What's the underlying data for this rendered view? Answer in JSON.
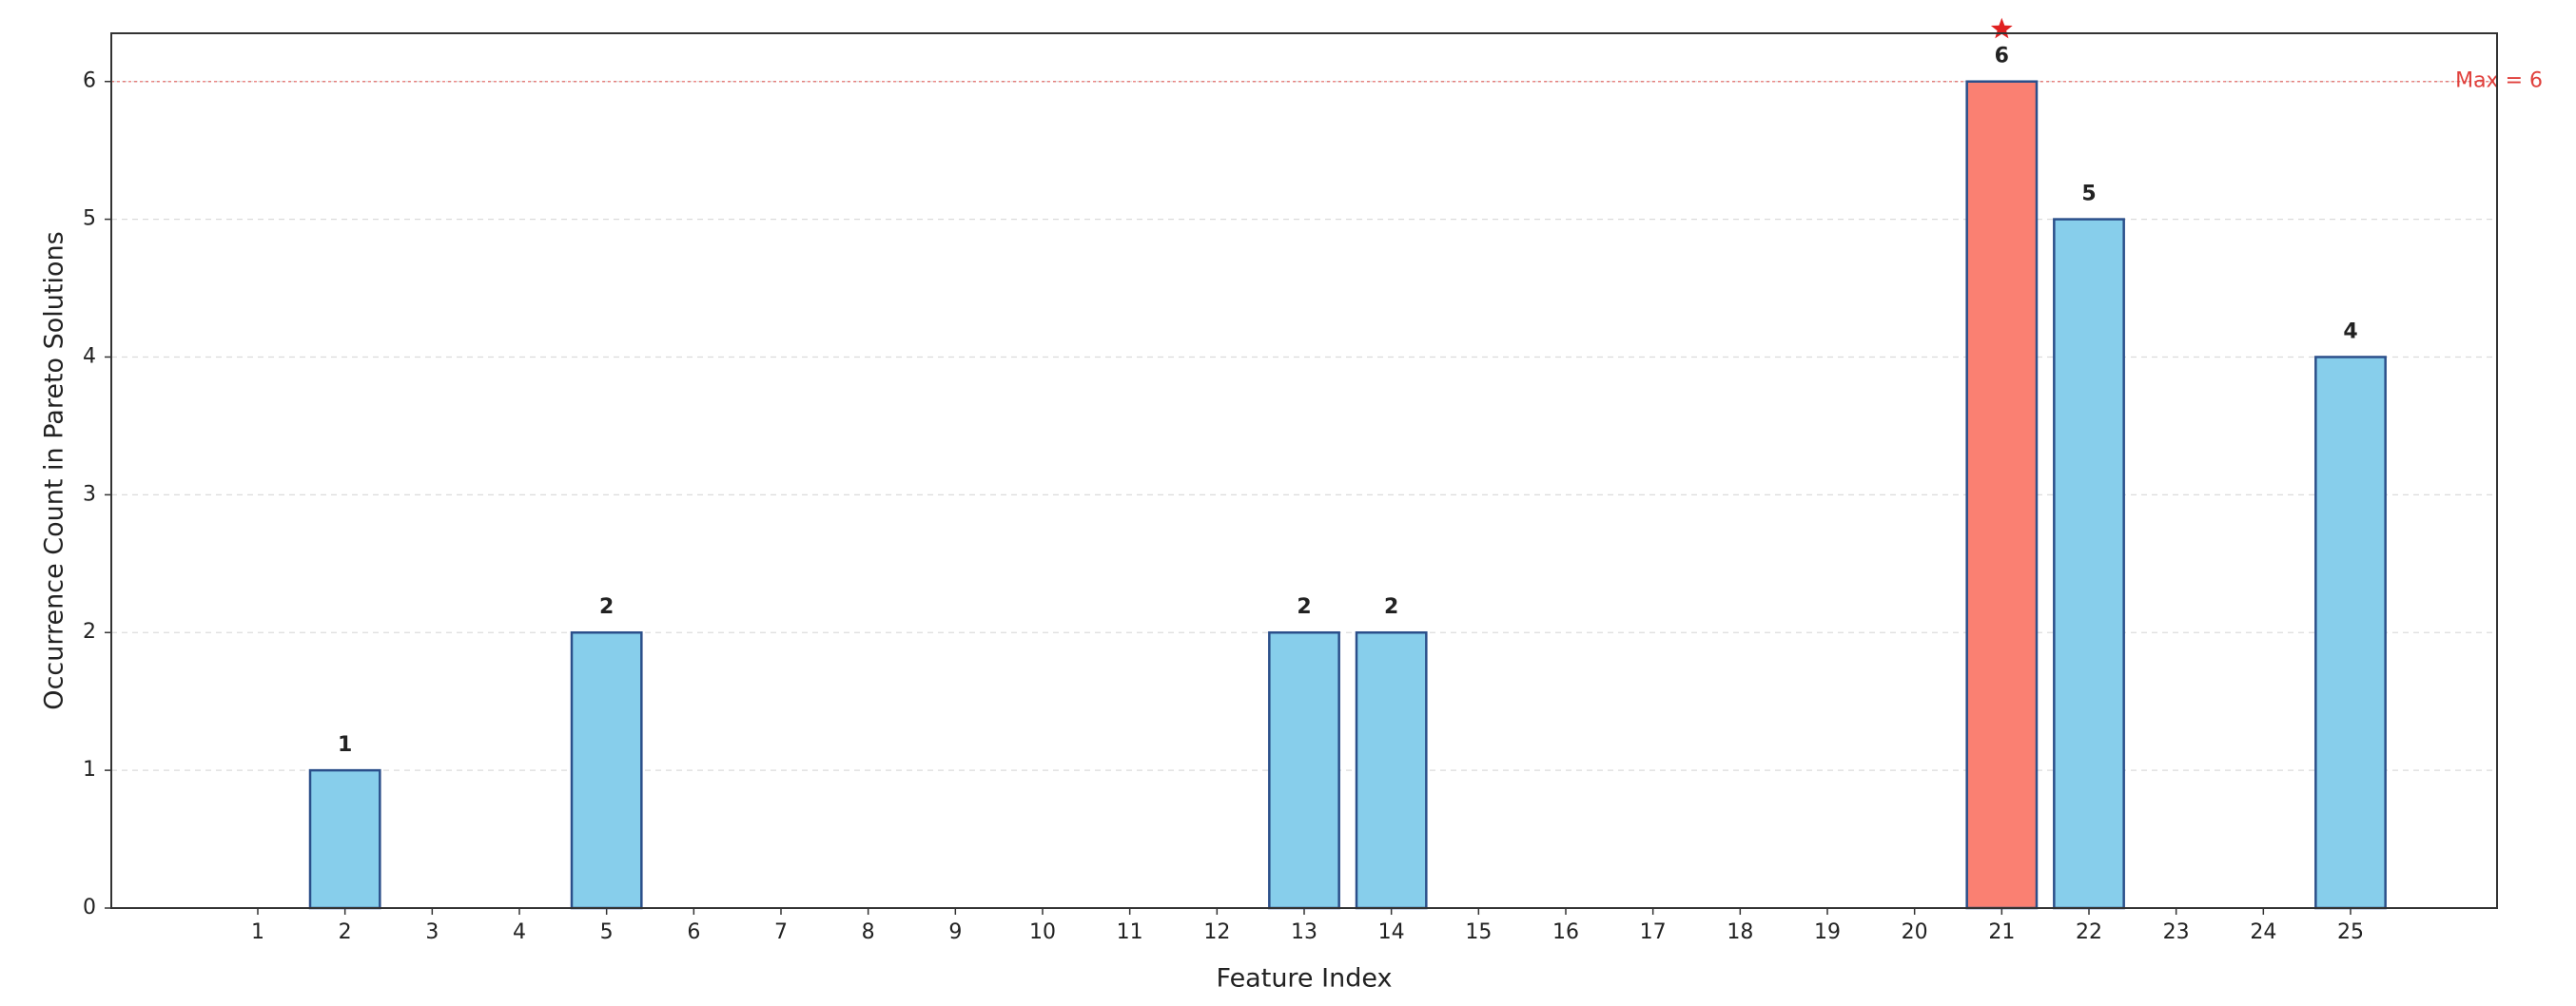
{
  "chart_data": {
    "type": "bar",
    "xlabel": "Feature Index",
    "ylabel": "Occurrence Count in Pareto Solutions",
    "categories": [
      "1",
      "2",
      "3",
      "4",
      "5",
      "6",
      "7",
      "8",
      "9",
      "10",
      "11",
      "12",
      "13",
      "14",
      "15",
      "16",
      "17",
      "18",
      "19",
      "20",
      "21",
      "22",
      "23",
      "24",
      "25"
    ],
    "values": [
      0,
      1,
      0,
      0,
      2,
      0,
      0,
      0,
      0,
      0,
      0,
      0,
      2,
      2,
      0,
      0,
      0,
      0,
      0,
      0,
      6,
      5,
      0,
      0,
      4
    ],
    "colors": [
      "#87ceeb",
      "#87ceeb",
      "#87ceeb",
      "#87ceeb",
      "#87ceeb",
      "#87ceeb",
      "#87ceeb",
      "#87ceeb",
      "#87ceeb",
      "#87ceeb",
      "#87ceeb",
      "#87ceeb",
      "#87ceeb",
      "#87ceeb",
      "#87ceeb",
      "#87ceeb",
      "#87ceeb",
      "#87ceeb",
      "#87ceeb",
      "#87ceeb",
      "#fa8072",
      "#87ceeb",
      "#87ceeb",
      "#87ceeb",
      "#87ceeb"
    ],
    "edge_color": "#2b4f8a",
    "ylim": [
      0,
      6.35
    ],
    "yticks": [
      0,
      1,
      2,
      3,
      4,
      5,
      6
    ],
    "grid": true,
    "reference_line": {
      "value": 6,
      "label": "Max = 6",
      "color": "#e0403c"
    }
  }
}
